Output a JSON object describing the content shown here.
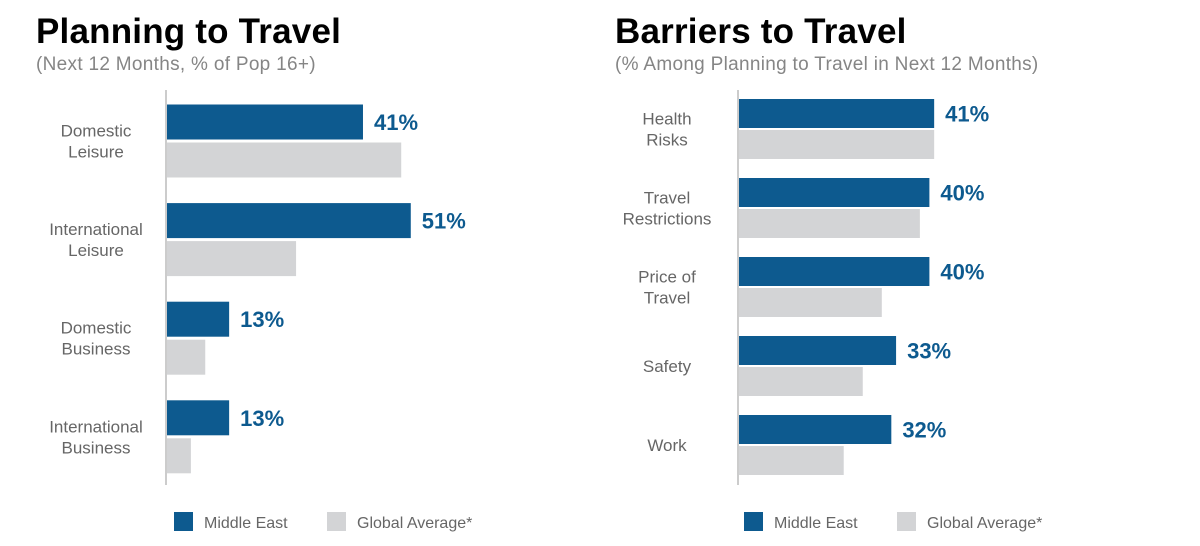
{
  "colors": {
    "primary": "#0d5a8f",
    "secondary": "#d3d4d6",
    "axis": "#9a9a9a"
  },
  "chart_data": [
    {
      "type": "bar",
      "orientation": "horizontal",
      "title": "Planning to Travel",
      "subtitle": "(Next 12 Months, % of Pop 16+)",
      "categories": [
        [
          "Domestic",
          "Leisure"
        ],
        [
          "International",
          "Leisure"
        ],
        [
          "Domestic",
          "Business"
        ],
        [
          "International",
          "Business"
        ]
      ],
      "series": [
        {
          "name": "Middle East",
          "values": [
            41,
            51,
            13,
            13
          ],
          "labels": [
            "41%",
            "51%",
            "13%",
            "13%"
          ]
        },
        {
          "name": "Global Average*",
          "values": [
            49,
            27,
            8,
            5
          ]
        }
      ],
      "xlim": [
        0,
        100
      ],
      "legend": "bottom"
    },
    {
      "type": "bar",
      "orientation": "horizontal",
      "title": "Barriers to Travel",
      "subtitle": "(% Among Planning to Travel in Next 12 Months)",
      "categories": [
        [
          "Health",
          "Risks"
        ],
        [
          "Travel",
          "Restrictions"
        ],
        [
          "Price of",
          "Travel"
        ],
        [
          "Safety"
        ],
        [
          "Work"
        ]
      ],
      "series": [
        {
          "name": "Middle East",
          "values": [
            41,
            40,
            40,
            33,
            32
          ],
          "labels": [
            "41%",
            "40%",
            "40%",
            "33%",
            "32%"
          ]
        },
        {
          "name": "Global Average*",
          "values": [
            41,
            38,
            30,
            26,
            22
          ]
        }
      ],
      "xlim": [
        0,
        100
      ],
      "legend": "bottom"
    }
  ]
}
